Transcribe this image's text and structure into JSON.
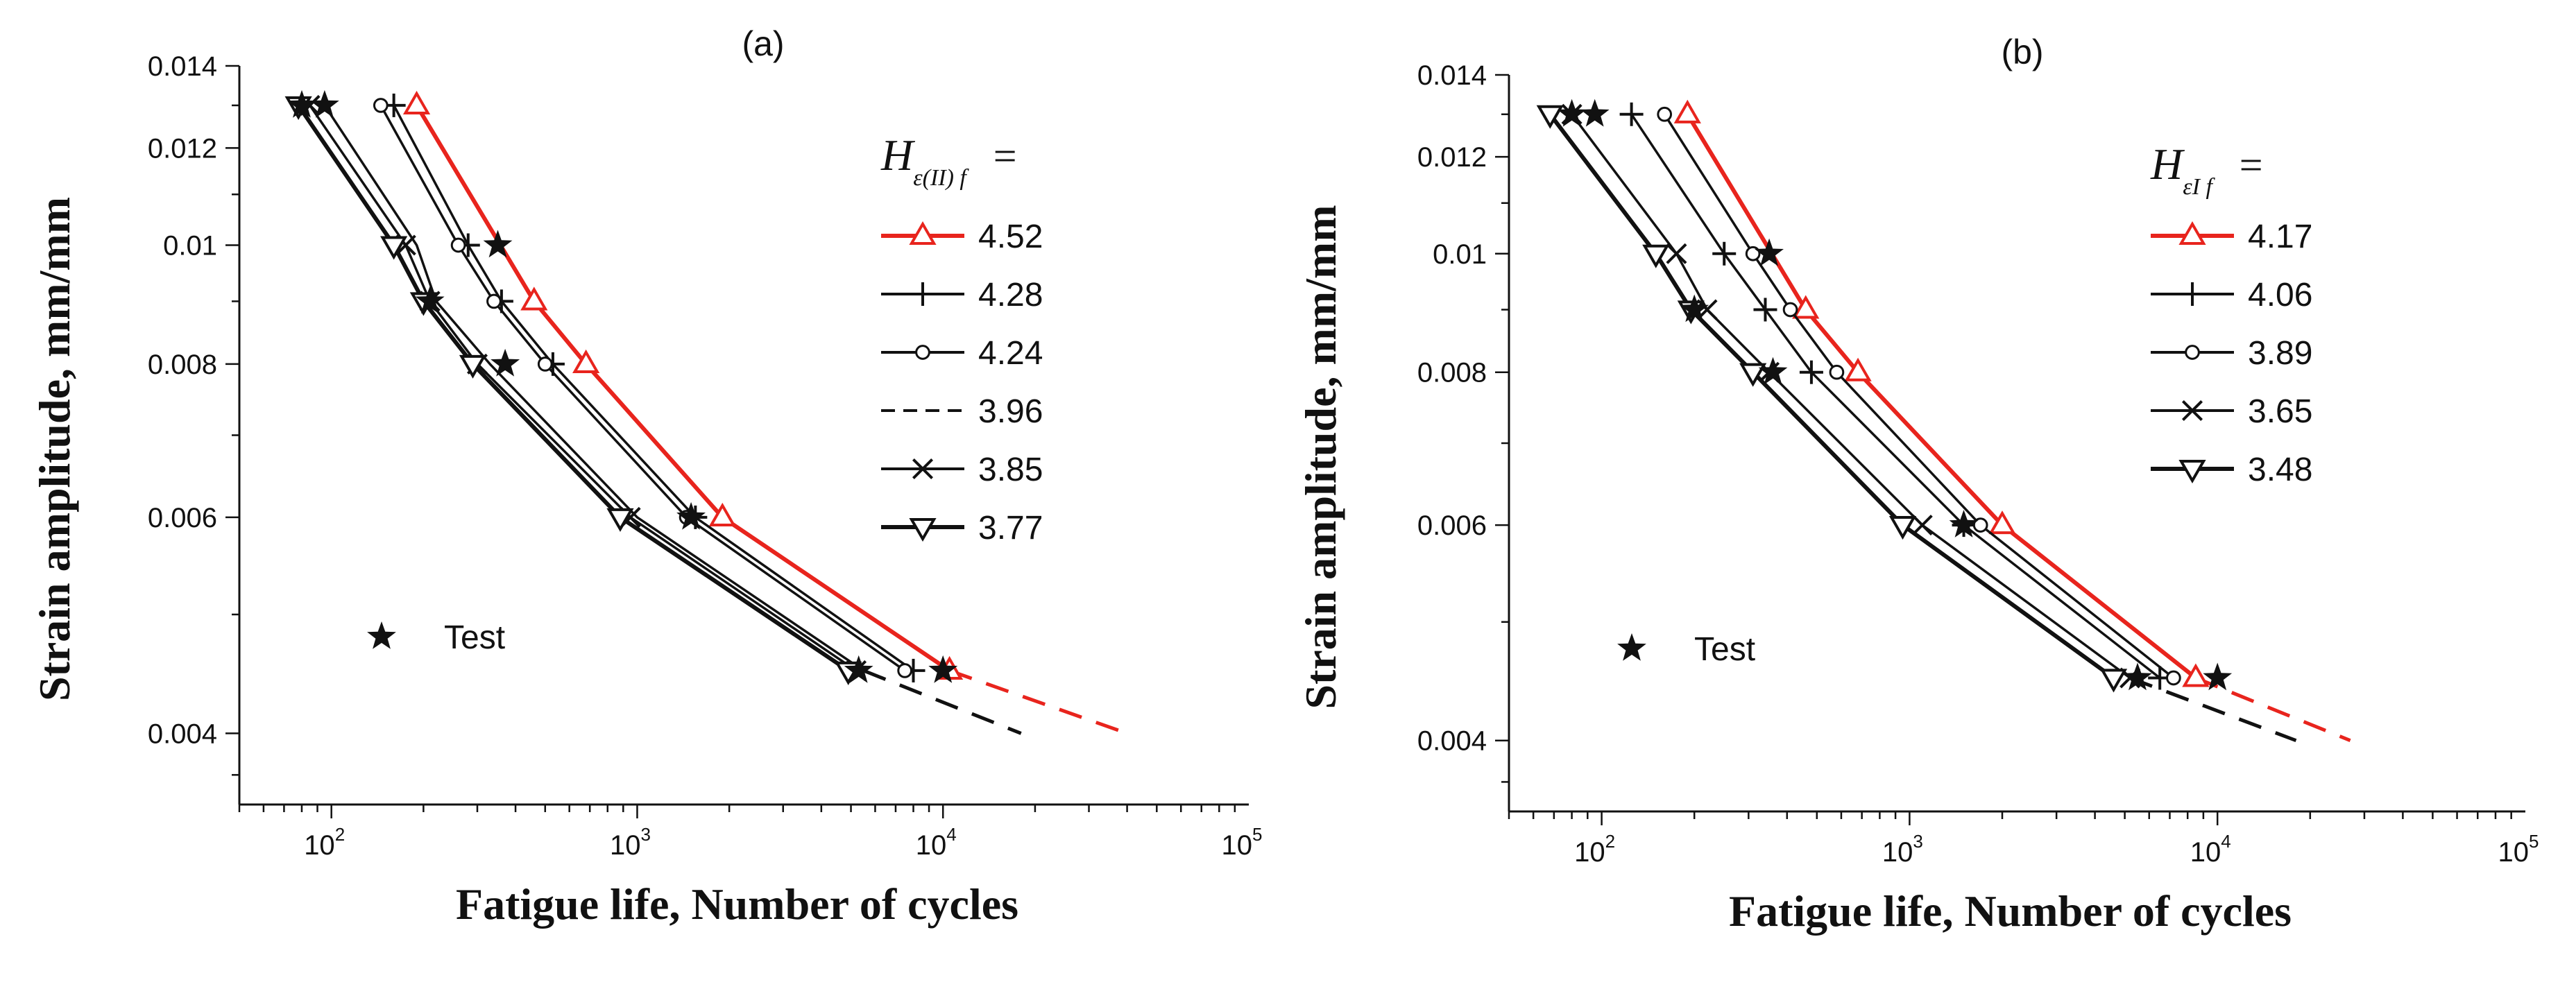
{
  "chart_data": [
    {
      "panel": "(a)",
      "type": "line",
      "xscale": "log",
      "yscale": "log",
      "xlabel": "Fatigue life, Number of cycles",
      "ylabel": "Strain amplitude,  mm/mm",
      "xlim": [
        50,
        100000
      ],
      "ylim": [
        0.0035,
        0.014
      ],
      "xticks": [
        100,
        1000,
        10000,
        100000
      ],
      "xtick_labels": [
        {
          "base": "10",
          "exp": "2"
        },
        {
          "base": "10",
          "exp": "3"
        },
        {
          "base": "10",
          "exp": "4"
        },
        {
          "base": "10",
          "exp": "5"
        }
      ],
      "yticks": [
        0.004,
        0.006,
        0.008,
        0.01,
        0.012,
        0.014
      ],
      "ytick_labels": [
        "0.004",
        "0.006",
        "0.008",
        "0.01",
        "0.012",
        "0.014"
      ],
      "legend_title": {
        "main": "H",
        "sub": "ε(II) f",
        "eq": "="
      },
      "legend_position": "top-right",
      "series": [
        {
          "name": "4.52",
          "color": "#e8241d",
          "marker": "triangle-up",
          "bold": true,
          "x": [
            190,
            460,
            680,
            1900,
            10500
          ],
          "y": [
            0.013,
            0.009,
            0.008,
            0.006,
            0.0045
          ],
          "extrap_x": [
            40000
          ],
          "extrap_y": [
            0.004
          ],
          "extrap_color": "#e8241d"
        },
        {
          "name": "4.28",
          "color": "#111111",
          "marker": "plus",
          "bold": false,
          "x": [
            160,
            280,
            360,
            530,
            1550,
            8000
          ],
          "y": [
            0.013,
            0.01,
            0.009,
            0.008,
            0.006,
            0.0045
          ]
        },
        {
          "name": "4.24",
          "color": "#111111",
          "marker": "circle",
          "bold": false,
          "x": [
            145,
            260,
            340,
            500,
            1450,
            7500
          ],
          "y": [
            0.013,
            0.01,
            0.009,
            0.008,
            0.006,
            0.0045
          ]
        },
        {
          "name": "3.96",
          "color": "#111111",
          "marker": "none",
          "bold": false,
          "x": [
            95,
            190,
            220,
            330,
            1000,
            5500
          ],
          "y": [
            0.013,
            0.01,
            0.009,
            0.008,
            0.006,
            0.0045
          ],
          "extrap_x": [
            18000
          ],
          "extrap_y": [
            0.004
          ],
          "extrap_color": "#111111"
        },
        {
          "name": "3.85",
          "color": "#111111",
          "marker": "x",
          "bold": false,
          "x": [
            85,
            175,
            210,
            300,
            950,
            5200
          ],
          "y": [
            0.013,
            0.01,
            0.009,
            0.008,
            0.006,
            0.0045
          ]
        },
        {
          "name": "3.77",
          "color": "#111111",
          "marker": "triangle-down",
          "bold": true,
          "x": [
            78,
            160,
            200,
            290,
            880,
            4900
          ],
          "y": [
            0.013,
            0.01,
            0.009,
            0.008,
            0.006,
            0.0045
          ]
        }
      ],
      "test": {
        "label": "Test",
        "x": [
          80,
          95,
          350,
          210,
          370,
          1500,
          5300,
          10000
        ],
        "y": [
          0.013,
          0.013,
          0.01,
          0.009,
          0.008,
          0.006,
          0.0045,
          0.0045
        ]
      }
    },
    {
      "panel": "(b)",
      "type": "line",
      "xscale": "log",
      "yscale": "log",
      "xlabel": "Fatigue life, Number of cycles",
      "ylabel": "Strain amplitude,  mm/mm",
      "xlim": [
        50,
        100000
      ],
      "ylim": [
        0.0035,
        0.014
      ],
      "xticks": [
        100,
        1000,
        10000,
        100000
      ],
      "xtick_labels": [
        {
          "base": "10",
          "exp": "2"
        },
        {
          "base": "10",
          "exp": "3"
        },
        {
          "base": "10",
          "exp": "4"
        },
        {
          "base": "10",
          "exp": "5"
        }
      ],
      "yticks": [
        0.004,
        0.006,
        0.008,
        0.01,
        0.012,
        0.014
      ],
      "ytick_labels": [
        "0.004",
        "0.006",
        "0.008",
        "0.01",
        "0.012",
        "0.014"
      ],
      "legend_title": {
        "main": "H",
        "sub": "εI f",
        "eq": "="
      },
      "legend_position": "top-right",
      "series": [
        {
          "name": "4.17",
          "color": "#e8241d",
          "marker": "triangle-up",
          "bold": true,
          "x": [
            190,
            460,
            680,
            2000,
            8500
          ],
          "y": [
            0.013,
            0.009,
            0.008,
            0.006,
            0.0045
          ],
          "extrap_x": [
            27000
          ],
          "extrap_y": [
            0.004
          ],
          "extrap_color": "#e8241d"
        },
        {
          "name": "4.06",
          "color": "#111111",
          "marker": "plus",
          "bold": false,
          "x": [
            125,
            250,
            340,
            480,
            1500,
            6500
          ],
          "y": [
            0.013,
            0.01,
            0.009,
            0.008,
            0.006,
            0.0045
          ]
        },
        {
          "name": "3.89",
          "color": "#111111",
          "marker": "circle",
          "bold": false,
          "x": [
            160,
            310,
            410,
            580,
            1700,
            7200
          ],
          "y": [
            0.013,
            0.01,
            0.009,
            0.008,
            0.006,
            0.0045
          ]
        },
        {
          "name": "3.65",
          "color": "#111111",
          "marker": "x",
          "bold": false,
          "x": [
            80,
            175,
            220,
            350,
            1100,
            5200
          ],
          "y": [
            0.013,
            0.01,
            0.009,
            0.008,
            0.006,
            0.0045
          ],
          "extrap_x": [
            18000
          ],
          "extrap_y": [
            0.004
          ],
          "extrap_color": "#111111"
        },
        {
          "name": "3.48",
          "color": "#111111",
          "marker": "triangle-down",
          "bold": true,
          "x": [
            68,
            150,
            195,
            310,
            950,
            4600
          ],
          "y": [
            0.013,
            0.01,
            0.009,
            0.008,
            0.006,
            0.0045
          ]
        }
      ],
      "test": {
        "label": "Test",
        "x": [
          80,
          95,
          350,
          200,
          360,
          1500,
          5500,
          10000
        ],
        "y": [
          0.013,
          0.013,
          0.01,
          0.009,
          0.008,
          0.006,
          0.0045,
          0.0045
        ]
      }
    }
  ]
}
